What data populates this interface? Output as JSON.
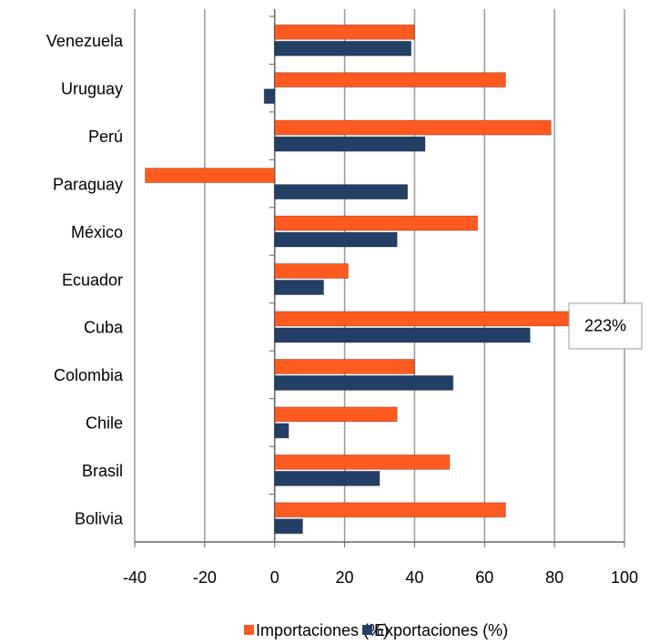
{
  "chart_data": {
    "type": "bar",
    "orientation": "horizontal",
    "categories": [
      "Venezuela",
      "Uruguay",
      "Perú",
      "Paraguay",
      "México",
      "Ecuador",
      "Cuba",
      "Colombia",
      "Chile",
      "Brasil",
      "Bolivia"
    ],
    "series": [
      {
        "name": "Importaciones (%)",
        "color": "#ff5a1f",
        "values": [
          40,
          66,
          79,
          -37,
          58,
          21,
          223,
          40,
          35,
          50,
          66
        ],
        "value_labels": [
          null,
          null,
          null,
          null,
          null,
          null,
          "223%",
          null,
          null,
          null,
          null
        ]
      },
      {
        "name": "Exportaciones (%)",
        "color": "#243f66",
        "values": [
          39,
          -3,
          43,
          38,
          35,
          14,
          73,
          51,
          4,
          30,
          8
        ]
      }
    ],
    "xlim": [
      -40,
      100
    ],
    "xticks": [
      -40,
      -20,
      0,
      20,
      40,
      60,
      80,
      100
    ],
    "grid": true,
    "legend": "bottom"
  }
}
